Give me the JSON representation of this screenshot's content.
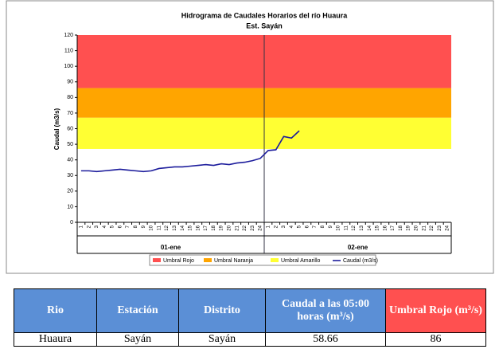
{
  "chart_data": {
    "type": "line",
    "title": "Hidrograma de Caudales Horarios del río Huaura",
    "subtitle": "Est. Sayán",
    "y_label": "Caudal (m3/s)",
    "ylim": [
      0,
      120
    ],
    "yticks": [
      0,
      10,
      20,
      30,
      40,
      50,
      60,
      70,
      80,
      90,
      100,
      110,
      120
    ],
    "categories": [
      "1",
      "2",
      "3",
      "4",
      "5",
      "6",
      "7",
      "8",
      "9",
      "10",
      "11",
      "12",
      "13",
      "14",
      "15",
      "16",
      "17",
      "18",
      "19",
      "20",
      "21",
      "22",
      "23",
      "24",
      "1",
      "2",
      "3",
      "4",
      "5",
      "6",
      "7",
      "8",
      "9",
      "10",
      "11",
      "12",
      "13",
      "14",
      "15",
      "16",
      "17",
      "18",
      "19",
      "20",
      "21",
      "22",
      "23",
      "24"
    ],
    "day_labels": [
      "01-ene",
      "02-ene"
    ],
    "bands": [
      {
        "name": "Umbral Rojo",
        "color": "#ff5050",
        "from": 86,
        "to": 120
      },
      {
        "name": "Umbral Naranja",
        "color": "#ffa500",
        "from": 67,
        "to": 86
      },
      {
        "name": "Umbral Amarillo",
        "color": "#ffff33",
        "from": 47,
        "to": 67
      }
    ],
    "series": [
      {
        "name": "Caudal (m3/s)",
        "color": "#1c1c9c",
        "values": [
          33,
          33,
          32.5,
          33,
          33.5,
          34,
          33.5,
          33,
          32.5,
          33,
          34.5,
          35,
          35.5,
          35.5,
          36,
          36.5,
          37,
          36.5,
          37.5,
          37,
          38,
          38.5,
          39.5,
          41,
          46,
          46.5,
          55,
          54,
          58.66,
          null,
          null,
          null,
          null,
          null,
          null,
          null,
          null,
          null,
          null,
          null,
          null,
          null,
          null,
          null,
          null,
          null,
          null,
          null
        ]
      }
    ]
  },
  "table": {
    "headers": [
      "Rio",
      "Estación",
      "Distrito",
      "Caudal a las 05:00 horas (m³/s)",
      "Umbral Rojo (m³/s)"
    ],
    "rows": [
      [
        "Huaura",
        "Sayán",
        "Sayán",
        "58.66",
        "86"
      ]
    ]
  }
}
